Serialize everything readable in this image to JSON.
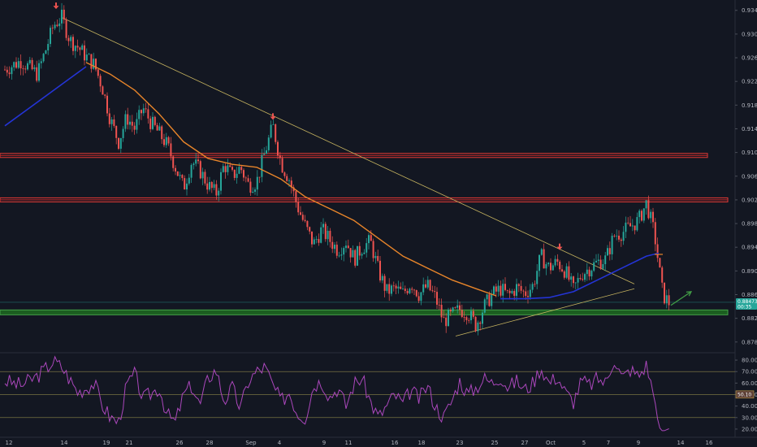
{
  "chart_data": {
    "type": "candlestick",
    "instrument": "USDCHF",
    "price_axis": {
      "ticks": [
        "0.93400",
        "0.93000",
        "0.92600",
        "0.92200",
        "0.91800",
        "0.91400",
        "0.91000",
        "0.90600",
        "0.90200",
        "0.89800",
        "0.89400",
        "0.89000",
        "0.88600",
        "0.88200",
        "0.87800"
      ],
      "range": [
        0.8766,
        0.9352
      ]
    },
    "time_axis": {
      "ticks": [
        "12",
        "14",
        "19",
        "21",
        "26",
        "28",
        "Sep",
        "4",
        "9",
        "11",
        "16",
        "18",
        "23",
        "25",
        "27",
        "Oct",
        "5",
        "7",
        "9",
        "14",
        "16"
      ]
    },
    "price_path": [
      {
        "t": 0,
        "p": 0.924
      },
      {
        "t": 2,
        "p": 0.9255
      },
      {
        "t": 4,
        "p": 0.9232
      },
      {
        "t": 5,
        "p": 0.9272
      },
      {
        "t": 6,
        "p": 0.9315
      },
      {
        "t": 7,
        "p": 0.9328
      },
      {
        "t": 8,
        "p": 0.929
      },
      {
        "t": 9,
        "p": 0.9278
      },
      {
        "t": 10,
        "p": 0.9262
      },
      {
        "t": 11,
        "p": 0.9248
      },
      {
        "t": 12,
        "p": 0.921
      },
      {
        "t": 13,
        "p": 0.9155
      },
      {
        "t": 14,
        "p": 0.9118
      },
      {
        "t": 15,
        "p": 0.916
      },
      {
        "t": 16,
        "p": 0.914
      },
      {
        "t": 17,
        "p": 0.9175
      },
      {
        "t": 18,
        "p": 0.915
      },
      {
        "t": 19,
        "p": 0.9132
      },
      {
        "t": 20,
        "p": 0.9112
      },
      {
        "t": 21,
        "p": 0.9075
      },
      {
        "t": 22,
        "p": 0.904
      },
      {
        "t": 23,
        "p": 0.9085
      },
      {
        "t": 24,
        "p": 0.907
      },
      {
        "t": 25,
        "p": 0.9045
      },
      {
        "t": 26,
        "p": 0.903
      },
      {
        "t": 27,
        "p": 0.908
      },
      {
        "t": 28,
        "p": 0.906
      },
      {
        "t": 29,
        "p": 0.9075
      },
      {
        "t": 30,
        "p": 0.9045
      },
      {
        "t": 31,
        "p": 0.905
      },
      {
        "t": 32,
        "p": 0.91
      },
      {
        "t": 33,
        "p": 0.9145
      },
      {
        "t": 34,
        "p": 0.9082
      },
      {
        "t": 35,
        "p": 0.9055
      },
      {
        "t": 36,
        "p": 0.901
      },
      {
        "t": 37,
        "p": 0.8975
      },
      {
        "t": 38,
        "p": 0.8945
      },
      {
        "t": 39,
        "p": 0.897
      },
      {
        "t": 40,
        "p": 0.8952
      },
      {
        "t": 41,
        "p": 0.8935
      },
      {
        "t": 42,
        "p": 0.895
      },
      {
        "t": 43,
        "p": 0.892
      },
      {
        "t": 44,
        "p": 0.894
      },
      {
        "t": 45,
        "p": 0.895
      },
      {
        "t": 46,
        "p": 0.89
      },
      {
        "t": 47,
        "p": 0.8865
      },
      {
        "t": 48,
        "p": 0.887
      },
      {
        "t": 49,
        "p": 0.8862
      },
      {
        "t": 50,
        "p": 0.888
      },
      {
        "t": 51,
        "p": 0.886
      },
      {
        "t": 52,
        "p": 0.8875
      },
      {
        "t": 53,
        "p": 0.8855
      },
      {
        "t": 54,
        "p": 0.8815
      },
      {
        "t": 55,
        "p": 0.8825
      },
      {
        "t": 56,
        "p": 0.8835
      },
      {
        "t": 57,
        "p": 0.883
      },
      {
        "t": 58,
        "p": 0.8808
      },
      {
        "t": 59,
        "p": 0.884
      },
      {
        "t": 60,
        "p": 0.886
      },
      {
        "t": 61,
        "p": 0.887
      },
      {
        "t": 62,
        "p": 0.8858
      },
      {
        "t": 63,
        "p": 0.8872
      },
      {
        "t": 64,
        "p": 0.8862
      },
      {
        "t": 65,
        "p": 0.8875
      },
      {
        "t": 66,
        "p": 0.8925
      },
      {
        "t": 67,
        "p": 0.8905
      },
      {
        "t": 68,
        "p": 0.8915
      },
      {
        "t": 69,
        "p": 0.89
      },
      {
        "t": 70,
        "p": 0.8868
      },
      {
        "t": 71,
        "p": 0.8895
      },
      {
        "t": 72,
        "p": 0.8905
      },
      {
        "t": 73,
        "p": 0.8915
      },
      {
        "t": 74,
        "p": 0.892
      },
      {
        "t": 75,
        "p": 0.896
      },
      {
        "t": 76,
        "p": 0.8965
      },
      {
        "t": 77,
        "p": 0.8975
      },
      {
        "t": 78,
        "p": 0.8985
      },
      {
        "t": 79,
        "p": 0.9015
      },
      {
        "t": 80,
        "p": 0.896
      },
      {
        "t": 81,
        "p": 0.886
      },
      {
        "t": 82,
        "p": 0.8842
      }
    ],
    "ma_orange": [
      {
        "t": 10,
        "p": 0.9252
      },
      {
        "t": 13,
        "p": 0.9232
      },
      {
        "t": 16,
        "p": 0.9205
      },
      {
        "t": 19,
        "p": 0.9165
      },
      {
        "t": 22,
        "p": 0.9118
      },
      {
        "t": 25,
        "p": 0.909
      },
      {
        "t": 28,
        "p": 0.908
      },
      {
        "t": 31,
        "p": 0.9075
      },
      {
        "t": 34,
        "p": 0.9055
      },
      {
        "t": 37,
        "p": 0.9025
      },
      {
        "t": 40,
        "p": 0.9005
      },
      {
        "t": 43,
        "p": 0.8985
      },
      {
        "t": 46,
        "p": 0.8955
      },
      {
        "t": 49,
        "p": 0.8925
      },
      {
        "t": 52,
        "p": 0.8905
      },
      {
        "t": 55,
        "p": 0.8885
      },
      {
        "t": 58,
        "p": 0.887
      },
      {
        "t": 60.5,
        "p": 0.8858
      }
    ],
    "ma_blue": [
      {
        "t": 0,
        "p": 0.9145
      },
      {
        "t": 3,
        "p": 0.9175
      },
      {
        "t": 6,
        "p": 0.9205
      },
      {
        "t": 8,
        "p": 0.9225
      },
      {
        "t": 10,
        "p": 0.9245
      }
    ],
    "ma_blue_late": [
      {
        "t": 61,
        "p": 0.8853
      },
      {
        "t": 64,
        "p": 0.8853
      },
      {
        "t": 67,
        "p": 0.8855
      },
      {
        "t": 70,
        "p": 0.8865
      },
      {
        "t": 73,
        "p": 0.8885
      },
      {
        "t": 76,
        "p": 0.8905
      },
      {
        "t": 79,
        "p": 0.8925
      },
      {
        "t": 80.5,
        "p": 0.893
      }
    ],
    "ma_orange_late": [
      {
        "t": 80,
        "p": 0.8928
      },
      {
        "t": 81,
        "p": 0.8928
      }
    ],
    "resistance_lines": [
      {
        "p": 0.9095,
        "t0": 0,
        "t1": 86.5
      },
      {
        "p": 0.902,
        "t0": 0,
        "t1": 89
      }
    ],
    "support_band": {
      "p_top": 0.883,
      "p_bottom": 0.8822,
      "t0": 0,
      "t1": 89
    },
    "trendline_down": {
      "t0": 7,
      "p0": 0.9328,
      "t1": 77.5,
      "p1": 0.8878
    },
    "trendline_up": {
      "t0": 55.5,
      "p0": 0.879,
      "t1": 77.5,
      "p1": 0.887
    },
    "arrows_down": [
      {
        "t": 6.3,
        "p": 0.9345
      },
      {
        "t": 33,
        "p": 0.9158
      },
      {
        "t": 68.3,
        "p": 0.8938
      }
    ],
    "arrow_up": {
      "t0": 82,
      "p0": 0.8842,
      "t1": 84.5,
      "p1": 0.8865
    },
    "current_price_label": "0.88473",
    "current_price_sub": "00:35",
    "current_price": 0.8847,
    "rsi": {
      "ticks": [
        "80.00",
        "70.00",
        "60.00",
        "50.00",
        "40.00",
        "30.00",
        "20.00"
      ],
      "range": [
        15,
        85
      ],
      "levels": [
        70,
        50,
        30
      ],
      "badge_label": "50.10",
      "badge_value": 50.1,
      "path": [
        {
          "t": 0,
          "v": 62
        },
        {
          "t": 2,
          "v": 58
        },
        {
          "t": 4,
          "v": 66
        },
        {
          "t": 6,
          "v": 79
        },
        {
          "t": 7,
          "v": 74
        },
        {
          "t": 9,
          "v": 52
        },
        {
          "t": 11,
          "v": 60
        },
        {
          "t": 12,
          "v": 41
        },
        {
          "t": 13,
          "v": 30
        },
        {
          "t": 14,
          "v": 26
        },
        {
          "t": 15,
          "v": 58
        },
        {
          "t": 16,
          "v": 68
        },
        {
          "t": 17,
          "v": 46
        },
        {
          "t": 19,
          "v": 56
        },
        {
          "t": 20,
          "v": 32
        },
        {
          "t": 21,
          "v": 26
        },
        {
          "t": 22,
          "v": 50
        },
        {
          "t": 23,
          "v": 58
        },
        {
          "t": 24,
          "v": 40
        },
        {
          "t": 25,
          "v": 64
        },
        {
          "t": 26,
          "v": 72
        },
        {
          "t": 27,
          "v": 44
        },
        {
          "t": 28,
          "v": 56
        },
        {
          "t": 29,
          "v": 38
        },
        {
          "t": 30,
          "v": 62
        },
        {
          "t": 31,
          "v": 70
        },
        {
          "t": 32,
          "v": 74
        },
        {
          "t": 33,
          "v": 58
        },
        {
          "t": 34,
          "v": 44
        },
        {
          "t": 35,
          "v": 52
        },
        {
          "t": 36,
          "v": 34
        },
        {
          "t": 37,
          "v": 30
        },
        {
          "t": 38,
          "v": 58
        },
        {
          "t": 39,
          "v": 62
        },
        {
          "t": 40,
          "v": 48
        },
        {
          "t": 41,
          "v": 56
        },
        {
          "t": 42,
          "v": 40
        },
        {
          "t": 43,
          "v": 60
        },
        {
          "t": 44,
          "v": 64
        },
        {
          "t": 45,
          "v": 44
        },
        {
          "t": 46,
          "v": 30
        },
        {
          "t": 47,
          "v": 40
        },
        {
          "t": 48,
          "v": 50
        },
        {
          "t": 49,
          "v": 42
        },
        {
          "t": 50,
          "v": 54
        },
        {
          "t": 51,
          "v": 46
        },
        {
          "t": 52,
          "v": 58
        },
        {
          "t": 53,
          "v": 40
        },
        {
          "t": 54,
          "v": 30
        },
        {
          "t": 55,
          "v": 44
        },
        {
          "t": 56,
          "v": 62
        },
        {
          "t": 57,
          "v": 50
        },
        {
          "t": 58,
          "v": 56
        },
        {
          "t": 59,
          "v": 64
        },
        {
          "t": 60,
          "v": 60
        },
        {
          "t": 61,
          "v": 66
        },
        {
          "t": 62,
          "v": 56
        },
        {
          "t": 63,
          "v": 62
        },
        {
          "t": 64,
          "v": 54
        },
        {
          "t": 65,
          "v": 60
        },
        {
          "t": 66,
          "v": 74
        },
        {
          "t": 67,
          "v": 60
        },
        {
          "t": 68,
          "v": 66
        },
        {
          "t": 69,
          "v": 52
        },
        {
          "t": 70,
          "v": 44
        },
        {
          "t": 71,
          "v": 62
        },
        {
          "t": 72,
          "v": 58
        },
        {
          "t": 73,
          "v": 64
        },
        {
          "t": 74,
          "v": 60
        },
        {
          "t": 75,
          "v": 82
        },
        {
          "t": 76,
          "v": 64
        },
        {
          "t": 77,
          "v": 72
        },
        {
          "t": 78,
          "v": 66
        },
        {
          "t": 79,
          "v": 76
        },
        {
          "t": 80,
          "v": 46
        },
        {
          "t": 80.5,
          "v": 22
        },
        {
          "t": 81,
          "v": 18
        },
        {
          "t": 82,
          "v": 21
        }
      ]
    }
  }
}
